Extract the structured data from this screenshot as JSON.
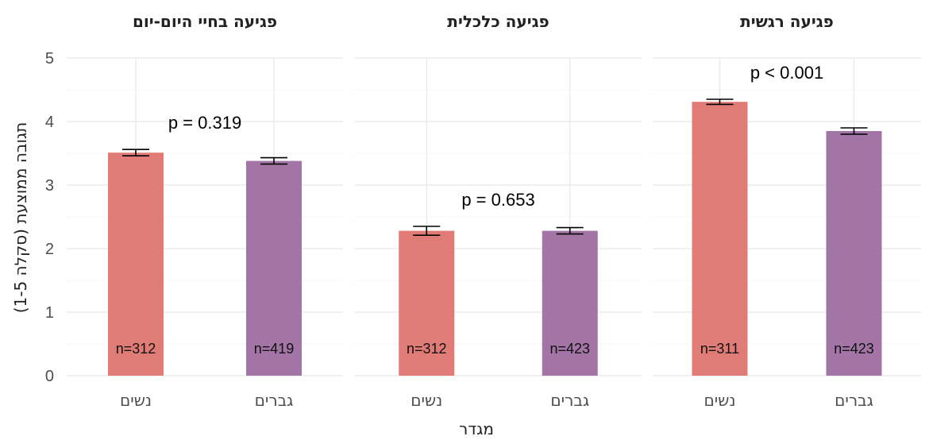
{
  "chart_data": {
    "type": "bar",
    "ylabel": "תגובה ממוצעת (סקלה 1-5)",
    "xlabel": "מגדר",
    "ylim": [
      0,
      5
    ],
    "yticks": [
      "0",
      "1",
      "2",
      "3",
      "4",
      "5"
    ],
    "categories": [
      "נשים",
      "גברים"
    ],
    "colors": {
      "נשים": "#e07b75",
      "גברים": "#a275a6"
    },
    "grid": true,
    "panels": [
      {
        "title": "פגיעה בחיי היום-יום",
        "p_label": "p = 0.319",
        "bars": [
          {
            "category": "נשים",
            "value": 3.51,
            "err": 0.05,
            "n_label": "n=312"
          },
          {
            "category": "גברים",
            "value": 3.38,
            "err": 0.05,
            "n_label": "n=419"
          }
        ]
      },
      {
        "title": "פגיעה כלכלית",
        "p_label": "p = 0.653",
        "bars": [
          {
            "category": "נשים",
            "value": 2.28,
            "err": 0.07,
            "n_label": "n=312"
          },
          {
            "category": "גברים",
            "value": 2.28,
            "err": 0.05,
            "n_label": "n=423"
          }
        ]
      },
      {
        "title": "פגיעה רגשית",
        "p_label": "p < 0.001",
        "bars": [
          {
            "category": "נשים",
            "value": 4.31,
            "err": 0.04,
            "n_label": "n=311"
          },
          {
            "category": "גברים",
            "value": 3.85,
            "err": 0.05,
            "n_label": "n=423"
          }
        ]
      }
    ]
  }
}
